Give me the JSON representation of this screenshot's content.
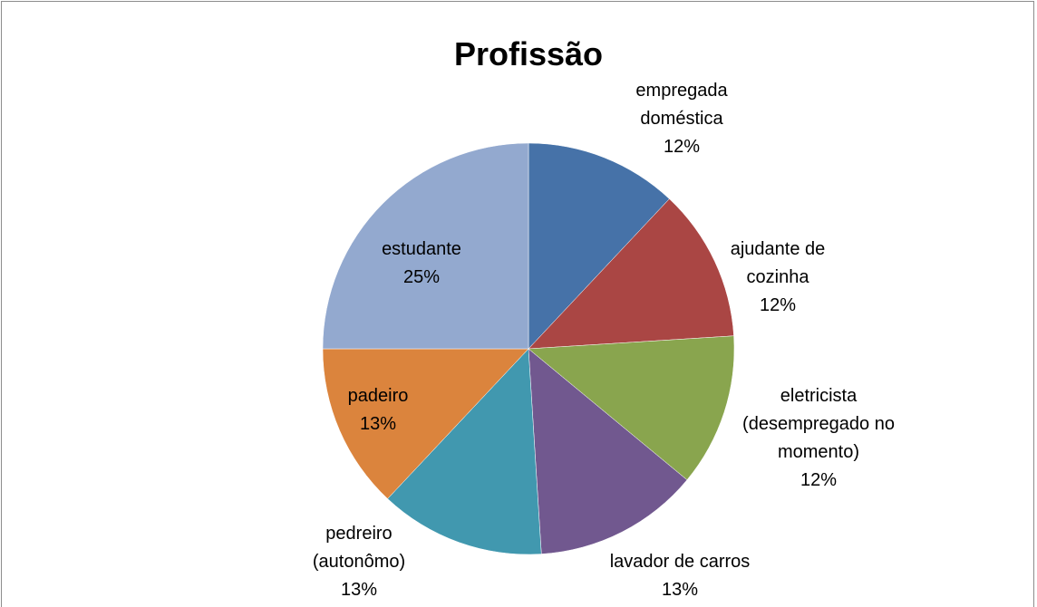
{
  "chart_data": {
    "type": "pie",
    "title": "Profissão",
    "categories": [
      "empregada doméstica",
      "ajudante de cozinha",
      "eletricista (desempregado no momento)",
      "lavador de carros",
      "pedreiro (autonômo)",
      "padeiro",
      "estudante"
    ],
    "values": [
      12,
      12,
      12,
      13,
      13,
      13,
      25
    ],
    "value_labels": [
      "12%",
      "12%",
      "12%",
      "13%",
      "13%",
      "13%",
      "25%"
    ],
    "colors": [
      "#4672a8",
      "#aa4644",
      "#89a54e",
      "#71588f",
      "#4198af",
      "#db843d",
      "#93a9cf"
    ]
  }
}
